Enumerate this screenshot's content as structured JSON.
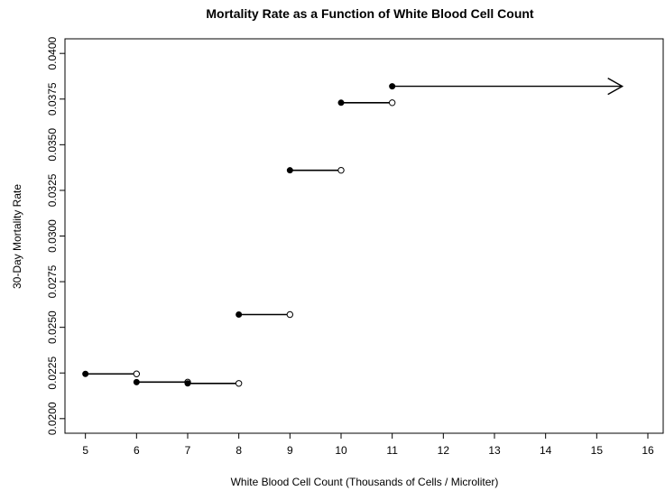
{
  "chart_data": {
    "type": "line",
    "title": "Mortality Rate as a Function of White Blood Cell Count",
    "xlabel": "White Blood Cell Count (Thousands of Cells / Microliter)",
    "ylabel": "30-Day Mortality Rate",
    "xlim": [
      4.6,
      16.3
    ],
    "ylim": [
      0.0192,
      0.0408
    ],
    "x_ticks": [
      5,
      6,
      7,
      8,
      9,
      10,
      11,
      12,
      13,
      14,
      15,
      16
    ],
    "x_tick_labels": [
      "5",
      "6",
      "7",
      "8",
      "9",
      "10",
      "11",
      "12",
      "13",
      "14",
      "15",
      "16"
    ],
    "y_ticks": [
      0.02,
      0.0225,
      0.025,
      0.0275,
      0.03,
      0.0325,
      0.035,
      0.0375,
      0.04
    ],
    "y_tick_labels": [
      "0.0200",
      "0.0225",
      "0.0250",
      "0.0275",
      "0.0300",
      "0.0325",
      "0.0350",
      "0.0375",
      "0.0400"
    ],
    "grid": false,
    "segments": [
      {
        "x_start": 5,
        "x_end": 6,
        "y": 0.02245
      },
      {
        "x_start": 6,
        "x_end": 7,
        "y": 0.022
      },
      {
        "x_start": 7,
        "x_end": 8,
        "y": 0.02193
      },
      {
        "x_start": 8,
        "x_end": 9,
        "y": 0.0257
      },
      {
        "x_start": 9,
        "x_end": 10,
        "y": 0.0336
      },
      {
        "x_start": 10,
        "x_end": 11,
        "y": 0.0373
      },
      {
        "x_start": 11,
        "x_end": 15.5,
        "y": 0.0382,
        "open_ended": true
      }
    ]
  }
}
